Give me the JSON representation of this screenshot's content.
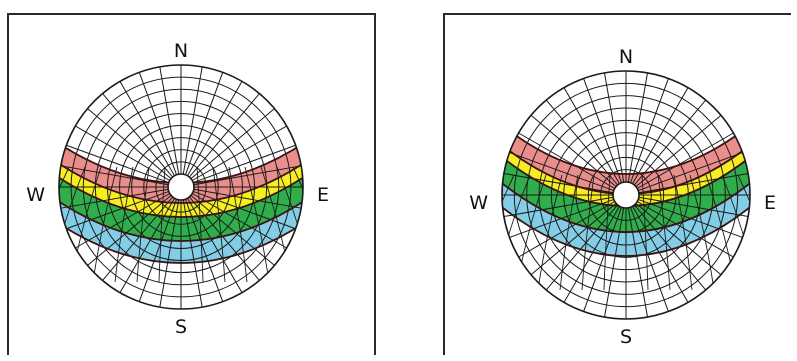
{
  "colors": {
    "red": "#ea8e8c",
    "yellow": "#f6ee22",
    "green": "#2fae4b",
    "blue": "#83cde6",
    "grid": "#1a1a1a"
  },
  "diagrams": [
    {
      "labels": {
        "north": "N",
        "south": "S",
        "west": "W",
        "east": "E"
      }
    },
    {
      "labels": {
        "north": "N",
        "south": "S",
        "west": "W",
        "east": "E"
      }
    }
  ]
}
